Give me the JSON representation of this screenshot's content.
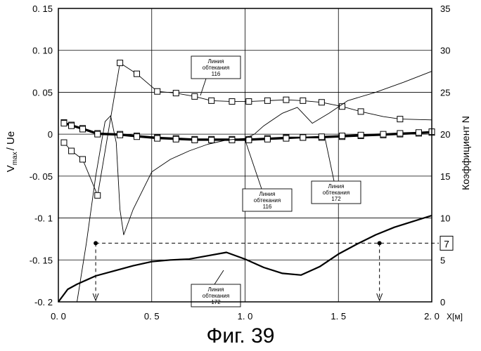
{
  "figure_caption": "Фиг. 39",
  "chart_data": {
    "type": "line",
    "x_ticks": [
      "0. 0",
      "0. 5",
      "1. 0",
      "1. 5",
      "2. 0"
    ],
    "x_tick_values": [
      0,
      0.5,
      1.0,
      1.5,
      2.0
    ],
    "xlabel": "X[м]",
    "left_axis": {
      "label": "V max / Ue",
      "label_main": "V",
      "label_sub": "max",
      "label_rest": "/ Ue",
      "ticks": [
        "0. 15",
        "0. 10",
        "0. 05",
        "0",
        "-0. 05",
        "-0. 1",
        "-0. 15",
        "-0. 2"
      ],
      "tick_values": [
        0.15,
        0.1,
        0.05,
        0,
        -0.05,
        -0.1,
        -0.15,
        -0.2
      ],
      "ylim": [
        -0.2,
        0.15
      ]
    },
    "right_axis": {
      "label": "Коэффициент N",
      "ticks": [
        "35",
        "30",
        "25",
        "20",
        "15",
        "10",
        "5",
        "0"
      ],
      "tick_values": [
        35,
        30,
        25,
        20,
        15,
        10,
        5,
        0
      ],
      "ylim": [
        0,
        35
      ]
    },
    "grid": true,
    "series": [
      {
        "name": "Линия обтекания 116",
        "axis": "left",
        "style": "thin",
        "marker": "square",
        "x": [
          0.03,
          0.07,
          0.13,
          0.21,
          0.33,
          0.42,
          0.53,
          0.63,
          0.73,
          0.82,
          0.93,
          1.02,
          1.12,
          1.22,
          1.31,
          1.41,
          1.52,
          1.62,
          1.74,
          1.83,
          2.0
        ],
        "y": [
          -0.01,
          -0.02,
          -0.03,
          -0.073,
          0.085,
          0.072,
          0.051,
          0.049,
          0.045,
          0.04,
          0.039,
          0.039,
          0.04,
          0.041,
          0.04,
          0.038,
          0.033,
          0.027,
          0.021,
          0.018,
          0.017
        ],
        "markers_x": [
          0.03,
          0.07,
          0.13,
          0.21,
          0.33,
          0.42,
          0.53,
          0.63,
          0.73,
          0.82,
          0.93,
          1.02,
          1.12,
          1.22,
          1.31,
          1.41,
          1.52,
          1.62,
          1.83
        ]
      },
      {
        "name": "Линия обтекания 116",
        "axis": "left",
        "style": "thick",
        "marker": "square",
        "x": [
          0.03,
          0.07,
          0.13,
          0.21,
          0.33,
          0.42,
          0.53,
          0.63,
          0.73,
          0.82,
          0.93,
          1.02,
          1.12,
          1.22,
          1.31,
          1.41,
          1.52,
          1.62,
          1.74,
          1.83,
          1.93,
          2.0
        ],
        "y": [
          0.014,
          0.011,
          0.007,
          0.001,
          0.0,
          -0.002,
          -0.004,
          -0.005,
          -0.006,
          -0.006,
          -0.006,
          -0.006,
          -0.005,
          -0.004,
          -0.004,
          -0.004,
          -0.003,
          -0.002,
          -0.001,
          0.0,
          0.001,
          0.002
        ],
        "markers_x": [
          0.03,
          0.07,
          0.13,
          0.21,
          0.33,
          0.42,
          0.53,
          0.63,
          0.73,
          0.82,
          0.93,
          1.02,
          1.12,
          1.22,
          1.31,
          1.41,
          1.52,
          1.62,
          1.74,
          1.83,
          1.93,
          2.0
        ]
      },
      {
        "name": "Линия обтекания 172",
        "axis": "left",
        "style": "thick",
        "marker": "square",
        "x": [
          0.03,
          0.07,
          0.13,
          0.21,
          0.33,
          0.42,
          0.53,
          0.63,
          0.73,
          0.82,
          0.93,
          1.02,
          1.12,
          1.22,
          1.31,
          1.41,
          1.52,
          1.62,
          1.74,
          1.83,
          1.93,
          2.0
        ],
        "y": [
          0.013,
          0.01,
          0.006,
          0.0,
          -0.001,
          -0.003,
          -0.005,
          -0.006,
          -0.007,
          -0.007,
          -0.007,
          -0.007,
          -0.006,
          -0.005,
          -0.004,
          -0.003,
          -0.002,
          -0.001,
          0.0,
          0.001,
          0.002,
          0.003
        ],
        "markers_x": [
          0.03,
          0.07,
          0.13,
          0.21,
          0.33,
          0.42,
          0.53,
          0.63,
          0.73,
          0.82,
          0.93,
          1.02,
          1.12,
          1.22,
          1.31,
          1.41,
          1.52,
          1.62,
          1.74,
          1.83,
          1.93,
          2.0
        ]
      },
      {
        "name": "Коэффициент N — линия обтекания 116",
        "axis": "right",
        "style": "thin",
        "marker": "none",
        "x": [
          0.0,
          0.05,
          0.1,
          0.15,
          0.2,
          0.25,
          0.28,
          0.31,
          0.33,
          0.35,
          0.4,
          0.5,
          0.6,
          0.7,
          0.8,
          0.9,
          1.0,
          1.05,
          1.1,
          1.2,
          1.28,
          1.36,
          1.45,
          1.55,
          1.7,
          1.85,
          2.0
        ],
        "y": [
          0.0,
          0.0,
          0.0,
          7.0,
          15.0,
          21.5,
          22.2,
          19.0,
          11.0,
          8.0,
          11.0,
          15.5,
          17.0,
          18.0,
          18.8,
          19.3,
          19.5,
          20.0,
          21.0,
          22.5,
          23.2,
          21.3,
          22.5,
          24.0,
          25.0,
          26.2,
          27.5
        ]
      },
      {
        "name": "Коэффициент N — линия обтекания 172",
        "axis": "right",
        "style": "thick",
        "marker": "none",
        "x": [
          0.0,
          0.05,
          0.1,
          0.2,
          0.3,
          0.4,
          0.5,
          0.6,
          0.7,
          0.8,
          0.9,
          1.0,
          1.1,
          1.2,
          1.3,
          1.4,
          1.5,
          1.6,
          1.7,
          1.8,
          1.9,
          2.0
        ],
        "y": [
          0.0,
          1.5,
          2.1,
          3.1,
          3.7,
          4.3,
          4.8,
          5.0,
          5.1,
          5.5,
          5.9,
          5.1,
          4.1,
          3.4,
          3.2,
          4.2,
          5.7,
          6.9,
          8.0,
          8.9,
          9.6,
          10.3
        ]
      }
    ],
    "annotations": [
      {
        "text_lines": [
          "Линия",
          "обтекания",
          "116"
        ]
      },
      {
        "text_lines": [
          "Линия",
          "обтекания",
          "116"
        ]
      },
      {
        "text_lines": [
          "Линия",
          "обтекания",
          "172"
        ]
      },
      {
        "text_lines": [
          "Линия",
          "обтекания",
          "172"
        ]
      }
    ],
    "reference": {
      "n_value": 7,
      "label": "7",
      "x_points": [
        0.2,
        1.72
      ]
    }
  }
}
